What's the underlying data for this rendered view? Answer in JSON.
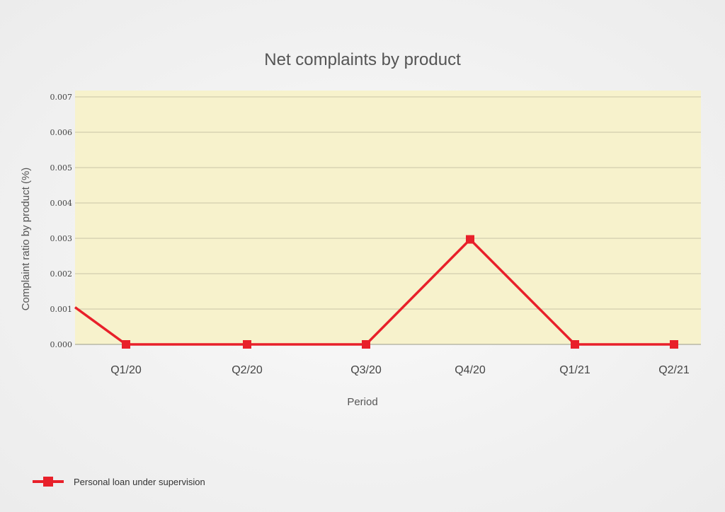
{
  "chart_data": {
    "type": "line",
    "title": "Net complaints by product",
    "xlabel": "Period",
    "ylabel": "Complaint ratio by product (%)",
    "ylim": [
      0,
      0.007
    ],
    "y_ticks": [
      "0.000",
      "0.001",
      "0.002",
      "0.003",
      "0.004",
      "0.005",
      "0.006",
      "0.007"
    ],
    "categories": [
      "Q1/20",
      "Q2/20",
      "Q3/20",
      "Q4/20",
      "Q1/21",
      "Q2/21"
    ],
    "series": [
      {
        "name": "Personal loan under supervision",
        "color": "#e8202a",
        "start_value": 0.00105,
        "values": [
          0.0,
          0.0,
          0.0,
          0.00297,
          0.0,
          0.0
        ]
      }
    ],
    "grid": true,
    "legend_position": "bottom-left",
    "plot_background": "#f7f2cc"
  }
}
